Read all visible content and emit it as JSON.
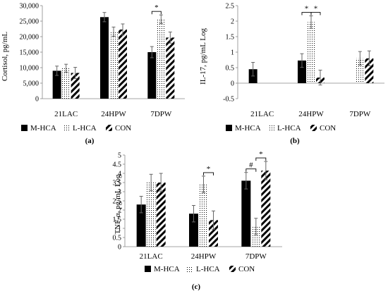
{
  "figure": {
    "panel_labels": [
      "(a)",
      "(b)",
      "(c)"
    ]
  },
  "legend": {
    "items": [
      {
        "name": "M-HCA",
        "pattern": "solid"
      },
      {
        "name": "L-HCA",
        "pattern": "dots"
      },
      {
        "name": "CON",
        "pattern": "diag"
      }
    ]
  },
  "chart_data": [
    {
      "type": "bar",
      "panel": "(a)",
      "ylabel": "Cortisol, pg/mL",
      "xlabel": "",
      "categories": [
        "21LAC",
        "24HPW",
        "7DPW"
      ],
      "ylim": [
        0,
        30000
      ],
      "yticks": [
        0,
        5000,
        10000,
        15000,
        20000,
        25000,
        30000
      ],
      "ytick_labels": [
        "0",
        "5,000",
        "10,000",
        "15,000",
        "20,000",
        "25,000",
        "30,000"
      ],
      "series": [
        {
          "name": "M-HCA",
          "values": [
            9000,
            26300,
            15000
          ],
          "errors": [
            1500,
            1500,
            1800
          ]
        },
        {
          "name": "L-HCA",
          "values": [
            9800,
            21600,
            25600
          ],
          "errors": [
            1300,
            1500,
            1400
          ]
        },
        {
          "name": "CON",
          "values": [
            8300,
            22300,
            19700
          ],
          "errors": [
            1800,
            1800,
            1800
          ]
        }
      ],
      "annotations": [
        {
          "category": "7DPW",
          "between": [
            "M-HCA",
            "L-HCA"
          ],
          "text": "*"
        }
      ]
    },
    {
      "type": "bar",
      "panel": "(b)",
      "ylabel": "IL-17, pg/mL Log",
      "xlabel": "",
      "categories": [
        "21LAC",
        "24HPW",
        "7DPW"
      ],
      "ylim": [
        -0.5,
        2.5
      ],
      "yticks": [
        -0.5,
        0,
        0.5,
        1,
        1.5,
        2,
        2.5
      ],
      "ytick_labels": [
        "-0.5",
        "0",
        "0.5",
        "1",
        "1.5",
        "2",
        "2.5"
      ],
      "series": [
        {
          "name": "M-HCA",
          "values": [
            0.45,
            0.73,
            null
          ],
          "errors": [
            0.22,
            0.22,
            null
          ]
        },
        {
          "name": "L-HCA",
          "values": [
            null,
            1.97,
            0.8
          ],
          "errors": [
            null,
            0.2,
            0.22
          ]
        },
        {
          "name": "CON",
          "values": [
            null,
            0.18,
            0.8
          ],
          "errors": [
            null,
            0.24,
            0.24
          ]
        }
      ],
      "annotations": [
        {
          "category": "24HPW",
          "between": [
            "M-HCA",
            "L-HCA"
          ],
          "text": "*"
        },
        {
          "category": "24HPW",
          "between": [
            "L-HCA",
            "CON"
          ],
          "text": "*"
        }
      ]
    },
    {
      "type": "bar",
      "panel": "(c)",
      "ylabel": "TNF-α, pg/mL Log",
      "xlabel": "",
      "categories": [
        "21LAC",
        "24HPW",
        "7DPW"
      ],
      "ylim": [
        0,
        5
      ],
      "yticks": [
        0,
        0.5,
        1,
        1.5,
        2,
        2.5,
        3,
        3.5,
        4,
        4.5,
        5
      ],
      "ytick_labels": [
        "0",
        "0.5",
        "1",
        "1.5",
        "2",
        "2.5",
        "3",
        "3.5",
        "4",
        "4.5",
        "5"
      ],
      "series": [
        {
          "name": "M-HCA",
          "values": [
            2.3,
            1.8,
            3.6
          ],
          "errors": [
            0.45,
            0.45,
            0.45
          ]
        },
        {
          "name": "L-HCA",
          "values": [
            3.5,
            3.4,
            1.1
          ],
          "errors": [
            0.45,
            0.45,
            0.45
          ]
        },
        {
          "name": "CON",
          "values": [
            3.5,
            1.45,
            4.15
          ],
          "errors": [
            0.5,
            0.5,
            0.5
          ]
        }
      ],
      "annotations": [
        {
          "category": "24HPW",
          "between": [
            "L-HCA",
            "CON"
          ],
          "text": "*"
        },
        {
          "category": "7DPW",
          "between": [
            "M-HCA",
            "L-HCA"
          ],
          "text": "#"
        },
        {
          "category": "7DPW",
          "between": [
            "L-HCA",
            "CON"
          ],
          "text": "*"
        }
      ]
    }
  ]
}
